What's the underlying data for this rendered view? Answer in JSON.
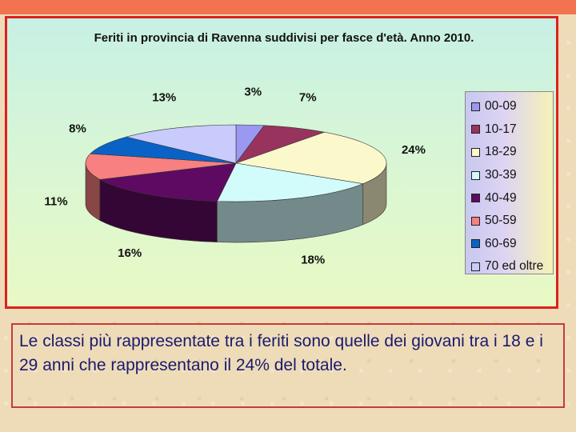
{
  "chart_data": {
    "type": "pie",
    "title": "Feriti in provincia di Ravenna suddivisi per fasce d'età.  Anno 2010.",
    "categories": [
      "00-09",
      "10-17",
      "18-29",
      "30-39",
      "40-49",
      "50-59",
      "60-69",
      "70 ed oltre"
    ],
    "values": [
      3,
      7,
      24,
      18,
      16,
      11,
      8,
      13
    ],
    "labels": [
      "3%",
      "7%",
      "24%",
      "18%",
      "16%",
      "11%",
      "8%",
      "13%"
    ],
    "colors": [
      "#9a98f0",
      "#98335e",
      "#fbf8cc",
      "#d2fbfb",
      "#5e0a63",
      "#f88080",
      "#0a62c6",
      "#c8cbfb"
    ],
    "legend": "right",
    "style": "3d"
  },
  "caption": "Le classi più rappresentate tra i feriti sono quelle dei giovani tra i 18 e i 29 anni che rappresentano il 24% del totale."
}
